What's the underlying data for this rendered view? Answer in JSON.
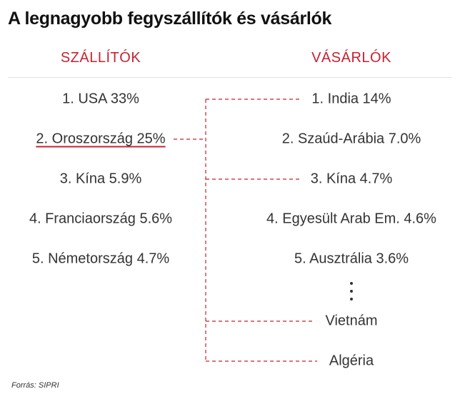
{
  "title": "A legnagyobb fegyszállítók és vásárlók",
  "headers": {
    "left": "SZÁLLÍTÓK",
    "right": "VÁSÁRLÓK"
  },
  "suppliers": [
    "1. USA 33%",
    "2. Oroszország 25%",
    "3. Kína 5.9%",
    "4. Franciaország 5.6%",
    "5. Németország 4.7%"
  ],
  "buyers": [
    "1. India 14%",
    "2. Szaúd-Arábia 7.0%",
    "3. Kína 4.7%",
    "4. Egyesült Arab Em. 4.6%",
    "5. Ausztrália 3.6%",
    "Vietnám",
    "Algéria"
  ],
  "highlighted_supplier": "2. Oroszország 25%",
  "connected_buyers": [
    "1. India 14%",
    "3. Kína 4.7%",
    "Vietnám",
    "Algéria"
  ],
  "source": "Forrás: SIPRI",
  "colors": {
    "accent": "#c8202f",
    "text": "#333333",
    "title": "#111111"
  }
}
